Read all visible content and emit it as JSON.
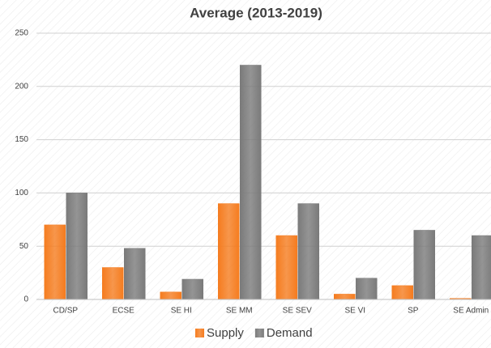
{
  "chart_data": {
    "type": "bar",
    "title": "Average (2013-2019)",
    "categories": [
      "CD/SP",
      "ECSE",
      "SE HI",
      "SE MM",
      "SE SEV",
      "SE VI",
      "SP",
      "SE Admin"
    ],
    "series": [
      {
        "name": "Supply",
        "color": "#f57c1f",
        "values": [
          70,
          30,
          7,
          90,
          60,
          5,
          13,
          1
        ]
      },
      {
        "name": "Demand",
        "color": "#7a7a7a",
        "values": [
          100,
          48,
          19,
          220,
          90,
          20,
          65,
          60
        ]
      }
    ],
    "ylim": [
      0,
      250
    ],
    "yticks": [
      0,
      50,
      100,
      150,
      200,
      250
    ],
    "grid": true,
    "legend": "bottom"
  }
}
